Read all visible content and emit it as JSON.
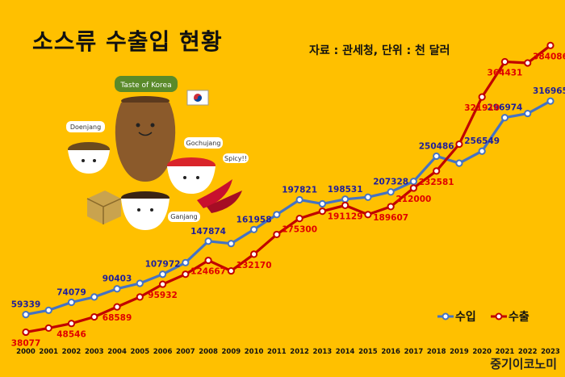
{
  "title": "소스류 수출입 현황",
  "source": "자료 : 관세청, 단위 : 천 달러",
  "brand": "중기이코노미",
  "colors": {
    "import": "#4472C4",
    "export": "#C00000",
    "import_label": "#1F1F9A",
    "export_label": "#E00000",
    "background": "#FFC000"
  },
  "illustration": {
    "banner": "Taste of Korea",
    "doenjang": "Doenjang",
    "gochujang": "Gochujang",
    "spicy": "Spicy!!",
    "ganjang": "Ganjang"
  },
  "chart_data": {
    "type": "line",
    "x": [
      "2000",
      "2001",
      "2002",
      "2003",
      "2004",
      "2005",
      "2006",
      "2007",
      "2008",
      "2009",
      "2010",
      "2011",
      "2012",
      "2013",
      "2014",
      "2015",
      "2016",
      "2017",
      "2018",
      "2019",
      "2020",
      "2021",
      "2022",
      "2023"
    ],
    "series": [
      {
        "name": "수입",
        "color": "#4472C4",
        "values": [
          59339,
          64500,
          74079,
          80500,
          90403,
          97000,
          107972,
          122000,
          147874,
          145000,
          161958,
          180000,
          197821,
          193000,
          198531,
          201000,
          207328,
          220000,
          250486,
          242000,
          256549,
          296974,
          302000,
          316965
        ],
        "labeled": [
          0,
          2,
          4,
          6,
          8,
          10,
          12,
          14,
          16,
          18,
          20,
          21,
          23
        ]
      },
      {
        "name": "수출",
        "color": "#C00000",
        "values": [
          38077,
          43000,
          48546,
          56500,
          68589,
          80500,
          95932,
          108000,
          124667,
          112000,
          132170,
          156000,
          175300,
          184000,
          191129,
          180000,
          189607,
          212000,
          232581,
          265000,
          321910,
          364431,
          363000,
          384086
        ],
        "labeled": [
          0,
          2,
          4,
          6,
          8,
          10,
          12,
          14,
          16,
          17,
          18,
          20,
          21,
          23
        ]
      }
    ],
    "ylim": [
      20000,
      400000
    ],
    "grid": false,
    "legend": "bottom-right",
    "xlabel": "",
    "ylabel": ""
  }
}
